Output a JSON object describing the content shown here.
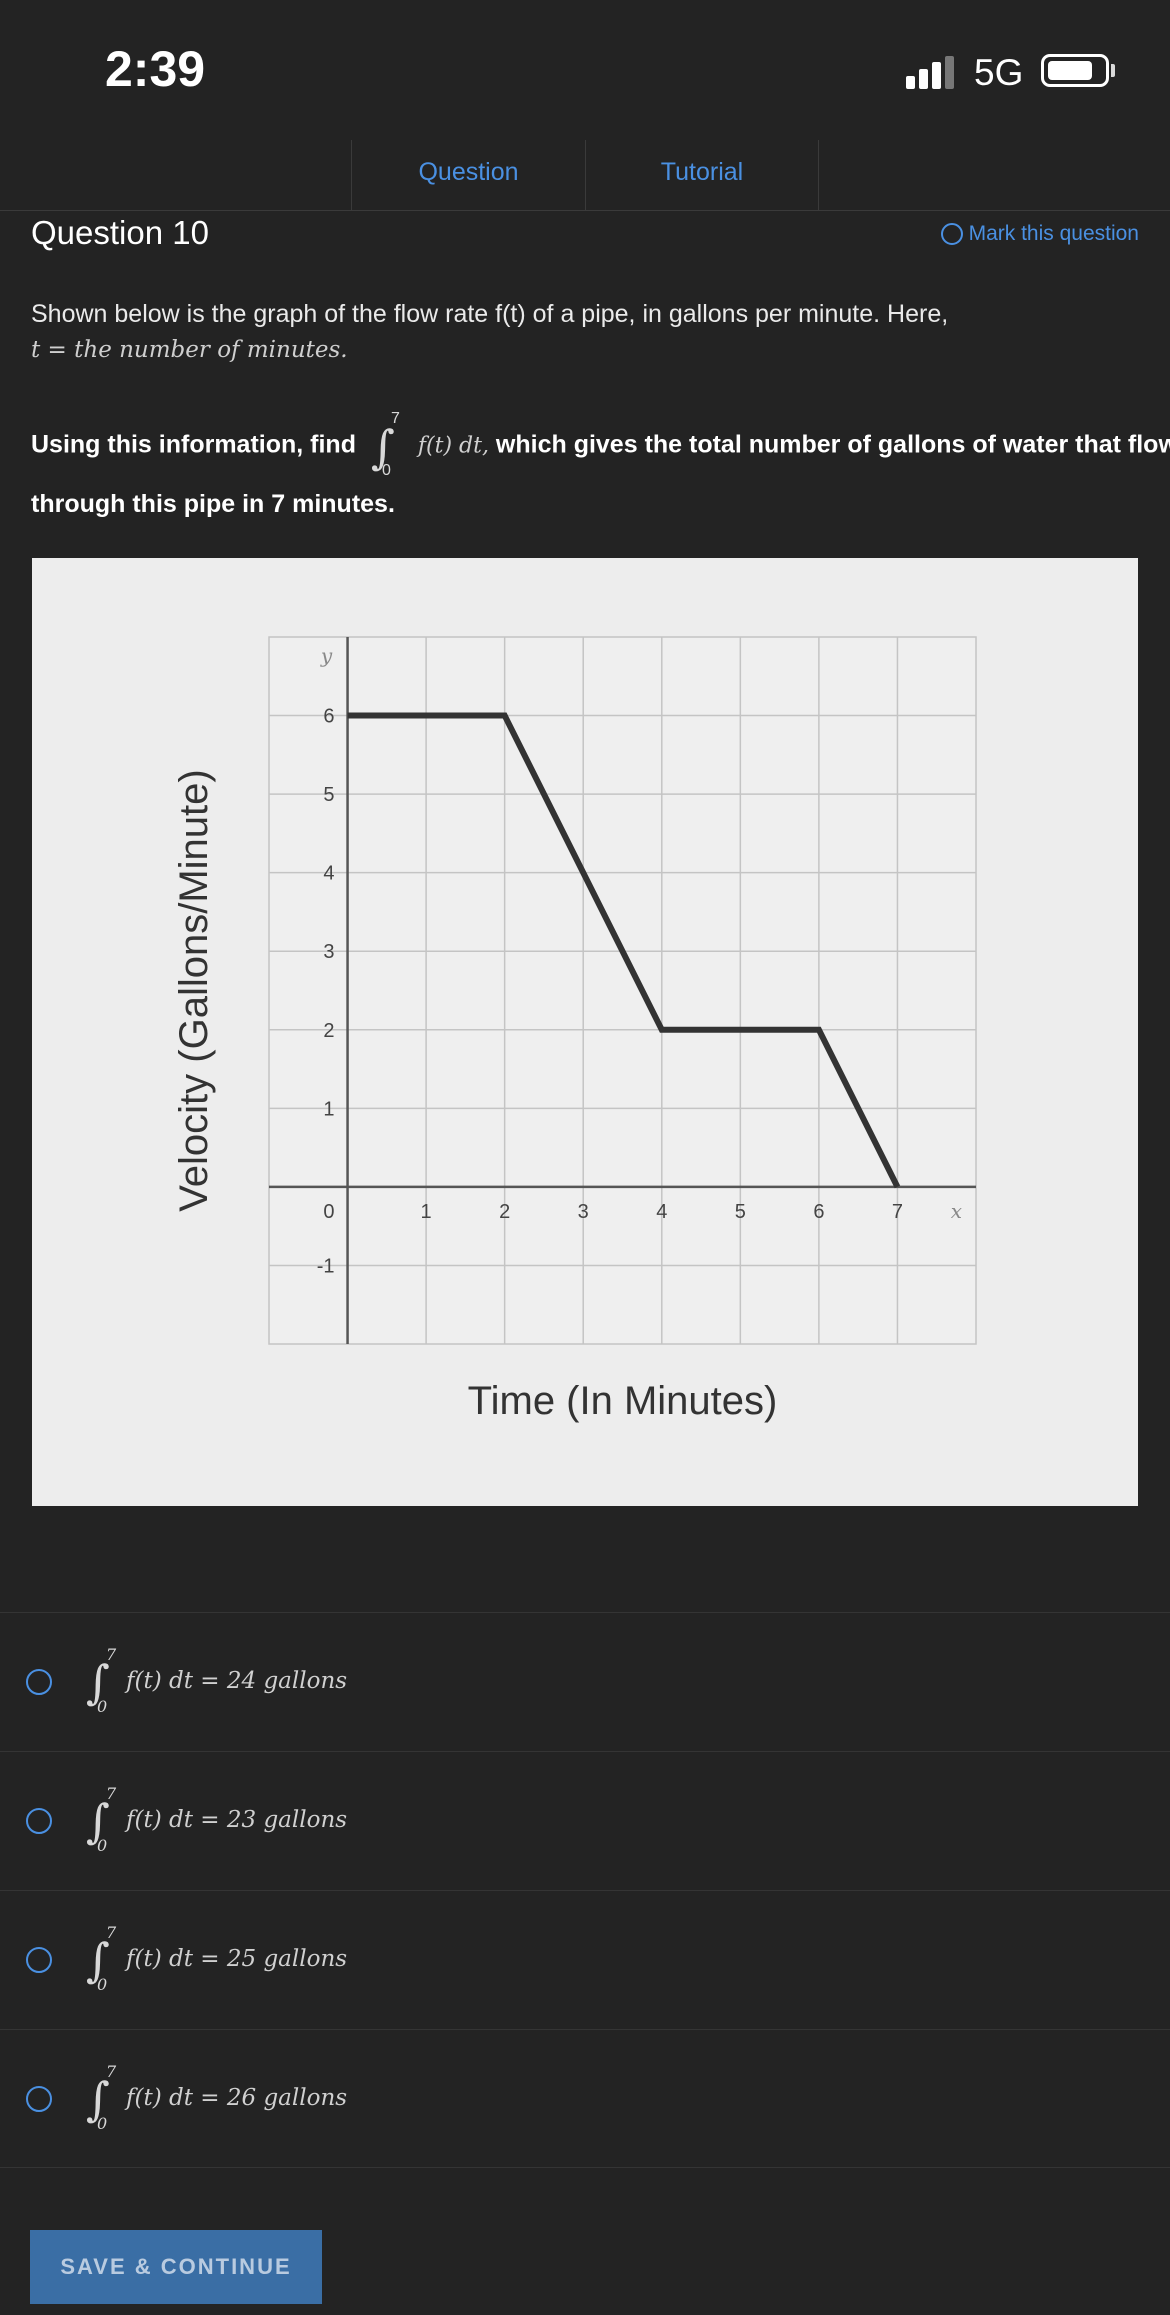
{
  "status_bar": {
    "time": "2:39",
    "network": "5G"
  },
  "tabs": [
    {
      "label": "Question"
    },
    {
      "label": "Tutorial"
    }
  ],
  "question": {
    "title": "Question 10",
    "mark_label": "Mark this question",
    "description": "Shown below is the graph of the flow rate f(t) of a pipe, in gallons per minute. Here,",
    "definition": "t = the number of minutes.",
    "instruction_pre": "Using this information, find",
    "integrand": "f(t) dt,",
    "instruction_post": "which gives the total number of gallons of water that flowed",
    "instruction_line2": "through this pipe in 7 minutes.",
    "int_upper": "7",
    "int_lower": "0"
  },
  "chart_data": {
    "type": "line",
    "xlabel": "Time (In Minutes)",
    "ylabel": "Velocity (Gallons/Minute)",
    "x_axis_name": "x",
    "y_axis_name": "y",
    "xlim": [
      -1,
      8
    ],
    "ylim": [
      -2,
      7
    ],
    "x_ticks": [
      1,
      2,
      3,
      4,
      5,
      6,
      7
    ],
    "y_ticks": [
      -1,
      1,
      2,
      3,
      4,
      5,
      6
    ],
    "origin_label": "0",
    "grid": true,
    "series": [
      {
        "x": [
          0,
          2,
          4,
          6,
          7
        ],
        "y": [
          6,
          6,
          2,
          2,
          0
        ]
      }
    ]
  },
  "answers": [
    {
      "upper": "7",
      "lower": "0",
      "text": "f(t) dt = 24 gallons"
    },
    {
      "upper": "7",
      "lower": "0",
      "text": "f(t) dt = 23 gallons"
    },
    {
      "upper": "7",
      "lower": "0",
      "text": "f(t) dt = 25 gallons"
    },
    {
      "upper": "7",
      "lower": "0",
      "text": "f(t) dt = 26 gallons"
    }
  ],
  "save_button": "SAVE & CONTINUE",
  "colors": {
    "accent": "#4a90e2",
    "background": "#232323",
    "button": "#3a6ea5"
  }
}
